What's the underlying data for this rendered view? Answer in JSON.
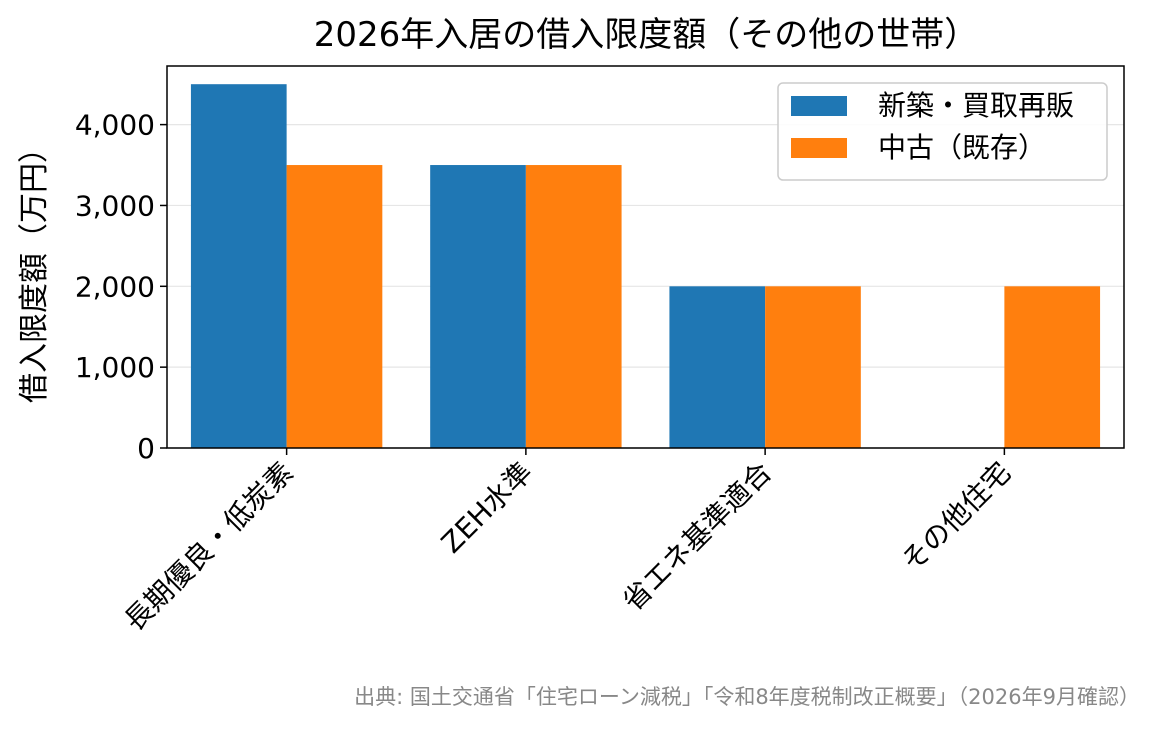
{
  "chart_data": {
    "type": "bar",
    "title": "2026年入居の借入限度額（その他の世帯）",
    "ylabel": "借入限度額（万円）",
    "xlabel": "",
    "categories": [
      "長期優良・低炭素",
      "ZEH水準",
      "省エネ基準適合",
      "その他住宅"
    ],
    "series": [
      {
        "name": "新築・買取再販",
        "color": "#1f77b4",
        "values": [
          4500,
          3500,
          2000,
          0
        ]
      },
      {
        "name": "中古（既存）",
        "color": "#ff7f0e",
        "values": [
          3500,
          3500,
          2000,
          2000
        ]
      }
    ],
    "ylim": [
      0,
      4725
    ],
    "yticks": [
      0,
      1000,
      2000,
      3000,
      4000
    ],
    "ytick_labels": [
      "0",
      "1,000",
      "2,000",
      "3,000",
      "4,000"
    ],
    "grid": "horizontal",
    "legend_position": "top-right",
    "source": "出典: 国土交通省「住宅ローン減税」「令和8年度税制改正概要」（2026年9月確認）"
  }
}
